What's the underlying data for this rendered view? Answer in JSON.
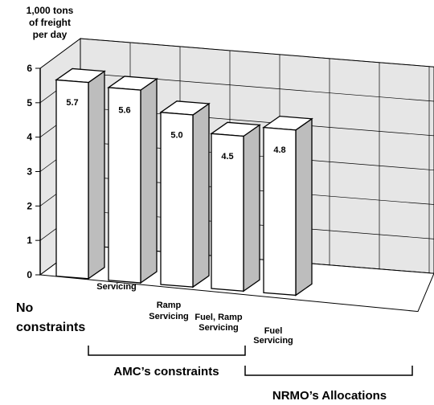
{
  "chart_data": {
    "type": "bar3d",
    "y_label": [
      "1,000 tons",
      "of freight",
      "per day"
    ],
    "categories": [
      [
        "No",
        "constraints"
      ],
      [
        "Servicing"
      ],
      [
        "Ramp",
        "Servicing"
      ],
      [
        "Fuel, Ramp",
        "Servicing"
      ],
      [
        "Fuel",
        "Servicing"
      ]
    ],
    "values": [
      5.7,
      5.6,
      5.0,
      4.5,
      4.8
    ],
    "value_labels": [
      "5.7",
      "5.6",
      "5.0",
      "4.5",
      "4.8"
    ],
    "ylim": [
      0,
      6
    ],
    "yticks": [
      0,
      1,
      2,
      3,
      4,
      5,
      6
    ],
    "grid": true,
    "groups": [
      "AMC’s constraints",
      "NRMO’s Allocations"
    ],
    "color": "#ffffff",
    "side_color": "#bdbdbd",
    "wall_color": "#e6e6e6"
  }
}
